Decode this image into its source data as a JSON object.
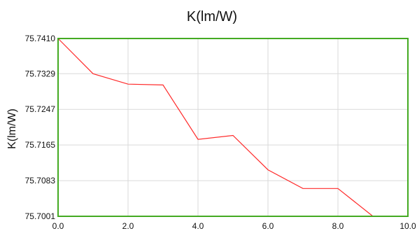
{
  "chart_data": {
    "type": "line",
    "title": "K(lm/W)",
    "xlabel": "",
    "ylabel": "K(lm/W)",
    "xlim": [
      0.0,
      10.0
    ],
    "ylim": [
      75.7001,
      75.741
    ],
    "x_ticks": [
      "0.0",
      "2.0",
      "4.0",
      "6.0",
      "8.0",
      "10.0"
    ],
    "y_ticks": [
      "75.7410",
      "75.7329",
      "75.7247",
      "75.7165",
      "75.7083",
      "75.7001"
    ],
    "grid": true,
    "series": [
      {
        "x": [
          0,
          1,
          2,
          3,
          4,
          5,
          6,
          7,
          8,
          9
        ],
        "y": [
          75.741,
          75.7329,
          75.7305,
          75.7303,
          75.7178,
          75.7187,
          75.7108,
          75.7065,
          75.7065,
          75.7001
        ]
      }
    ],
    "colors": {
      "line": "#ff2a2a",
      "frame": "#44aa22",
      "grid": "#d9d9d9"
    }
  }
}
